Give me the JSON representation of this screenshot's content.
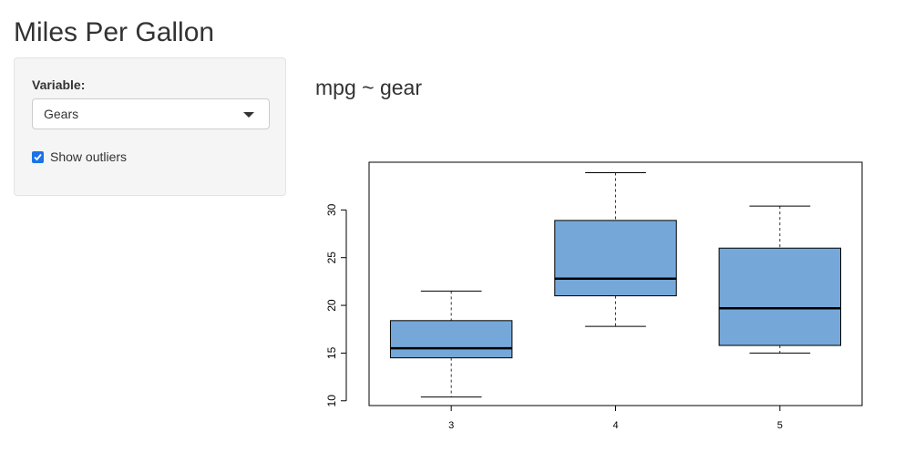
{
  "app": {
    "title": "Miles Per Gallon"
  },
  "sidebar": {
    "variable_label": "Variable:",
    "variable_selected": "Gears",
    "outliers_label": "Show outliers",
    "outliers_checked": true
  },
  "main": {
    "plot_title": "mpg ~ gear"
  },
  "colors": {
    "box_fill": "#75a8d9",
    "checkbox": "#1a73e8"
  },
  "chart_data": {
    "type": "boxplot",
    "title": "mpg ~ gear",
    "xlabel": "",
    "ylabel": "",
    "categories": [
      "3",
      "4",
      "5"
    ],
    "boxes": [
      {
        "category": "3",
        "whisker_low": 10.4,
        "q1": 14.5,
        "median": 15.5,
        "q3": 18.4,
        "whisker_high": 21.5
      },
      {
        "category": "4",
        "whisker_low": 17.8,
        "q1": 21.0,
        "median": 22.8,
        "q3": 28.9,
        "whisker_high": 33.9
      },
      {
        "category": "5",
        "whisker_low": 15.0,
        "q1": 15.8,
        "median": 19.7,
        "q3": 26.0,
        "whisker_high": 30.4
      }
    ],
    "y_ticks": [
      10,
      15,
      20,
      25,
      30
    ],
    "ylim": [
      9.5,
      35.0
    ],
    "grid": false
  }
}
